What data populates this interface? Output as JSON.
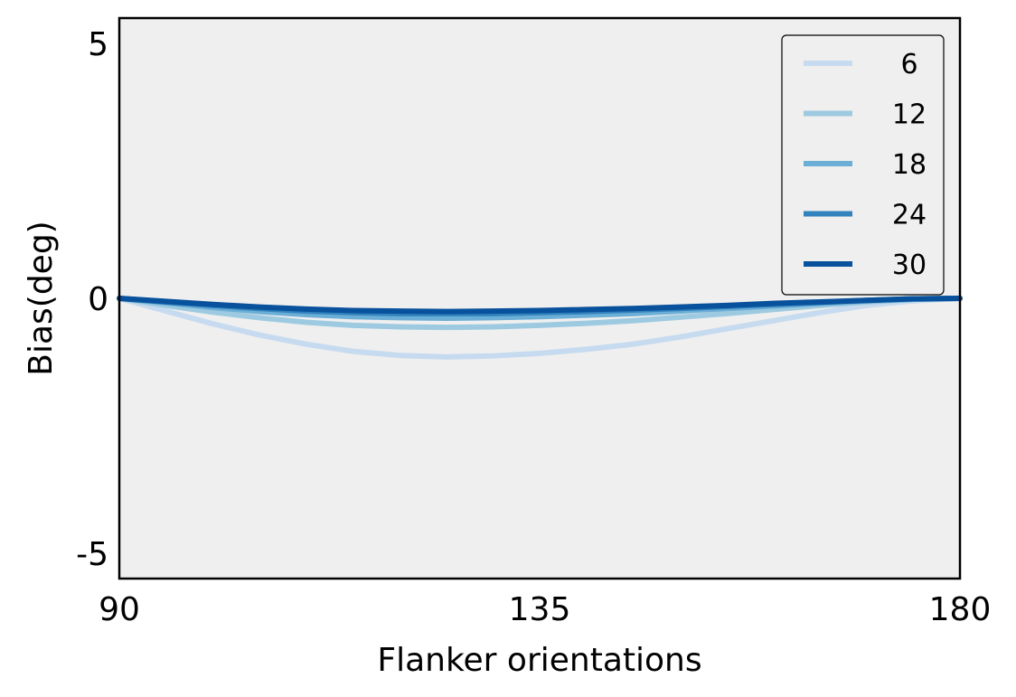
{
  "chart_data": {
    "type": "line",
    "title": "",
    "xlabel": "Flanker orientations",
    "ylabel": "Bias(deg)",
    "xlim": [
      90,
      180
    ],
    "ylim": [
      -5.5,
      5.5
    ],
    "xticks": [
      90,
      135,
      180
    ],
    "xtick_labels": [
      "90",
      "135",
      "180"
    ],
    "yticks": [
      -5,
      0,
      5
    ],
    "ytick_labels": [
      "-5",
      "0",
      "5"
    ],
    "grid": false,
    "legend_placement": "top-right",
    "background_color": "#efefef",
    "series": [
      {
        "name": "6",
        "color": "#c6dbef",
        "x": [
          90,
          95,
          100,
          105,
          110,
          115,
          120,
          125,
          130,
          135,
          140,
          145,
          150,
          155,
          160,
          165,
          170,
          175,
          180
        ],
        "y": [
          0,
          -0.25,
          -0.5,
          -0.72,
          -0.9,
          -1.04,
          -1.12,
          -1.15,
          -1.13,
          -1.08,
          -1.0,
          -0.9,
          -0.76,
          -0.6,
          -0.44,
          -0.28,
          -0.14,
          -0.05,
          0
        ]
      },
      {
        "name": "12",
        "color": "#9ecae1",
        "x": [
          90,
          95,
          100,
          105,
          110,
          115,
          120,
          125,
          130,
          135,
          140,
          145,
          150,
          155,
          160,
          165,
          170,
          175,
          180
        ],
        "y": [
          0,
          -0.14,
          -0.27,
          -0.38,
          -0.47,
          -0.53,
          -0.56,
          -0.57,
          -0.56,
          -0.53,
          -0.49,
          -0.44,
          -0.37,
          -0.3,
          -0.22,
          -0.14,
          -0.07,
          -0.02,
          0
        ]
      },
      {
        "name": "18",
        "color": "#6baed6",
        "x": [
          90,
          95,
          100,
          105,
          110,
          115,
          120,
          125,
          130,
          135,
          140,
          145,
          150,
          155,
          160,
          165,
          170,
          175,
          180
        ],
        "y": [
          0,
          -0.09,
          -0.18,
          -0.26,
          -0.32,
          -0.36,
          -0.38,
          -0.39,
          -0.38,
          -0.36,
          -0.33,
          -0.3,
          -0.25,
          -0.2,
          -0.15,
          -0.1,
          -0.05,
          -0.02,
          0
        ]
      },
      {
        "name": "24",
        "color": "#3182bd",
        "x": [
          90,
          95,
          100,
          105,
          110,
          115,
          120,
          125,
          130,
          135,
          140,
          145,
          150,
          155,
          160,
          165,
          170,
          175,
          180
        ],
        "y": [
          0,
          -0.07,
          -0.14,
          -0.2,
          -0.25,
          -0.28,
          -0.3,
          -0.3,
          -0.3,
          -0.28,
          -0.26,
          -0.23,
          -0.2,
          -0.16,
          -0.12,
          -0.08,
          -0.04,
          -0.01,
          0
        ]
      },
      {
        "name": "30",
        "color": "#08519c",
        "x": [
          90,
          95,
          100,
          105,
          110,
          115,
          120,
          125,
          130,
          135,
          140,
          145,
          150,
          155,
          160,
          165,
          170,
          175,
          180
        ],
        "y": [
          0,
          -0.06,
          -0.12,
          -0.17,
          -0.21,
          -0.24,
          -0.25,
          -0.26,
          -0.25,
          -0.24,
          -0.22,
          -0.2,
          -0.17,
          -0.14,
          -0.1,
          -0.07,
          -0.04,
          -0.01,
          0
        ]
      }
    ]
  }
}
